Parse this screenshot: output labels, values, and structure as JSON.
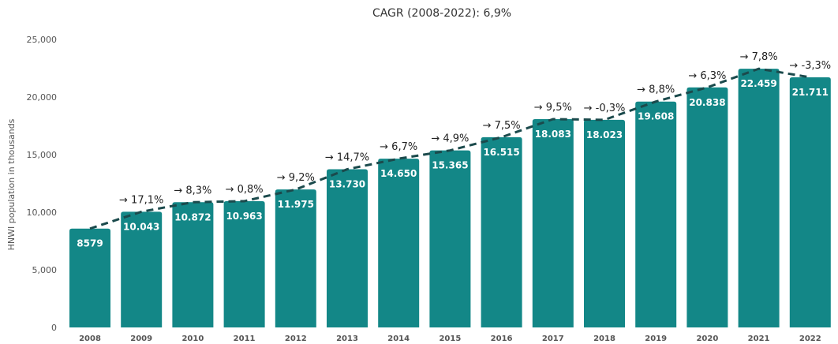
{
  "chart_data": {
    "type": "bar",
    "title": "CAGR (2008-2022): 6,9%",
    "xlabel": "",
    "ylabel": "HNWI population in thousands",
    "ylim": [
      0,
      25000
    ],
    "yticks": [
      "0",
      "5,000",
      "10,000",
      "15,000",
      "20,000",
      "25,000"
    ],
    "ytick_values": [
      0,
      5000,
      10000,
      15000,
      20000,
      25000
    ],
    "grid": false,
    "categories": [
      "2008",
      "2009",
      "2010",
      "2011",
      "2012",
      "2013",
      "2014",
      "2015",
      "2016",
      "2017",
      "2018",
      "2019",
      "2020",
      "2021",
      "2022"
    ],
    "values": [
      8579,
      10043,
      10872,
      10963,
      11975,
      13730,
      14650,
      15365,
      16515,
      18083,
      18023,
      19608,
      20838,
      22459,
      21711
    ],
    "value_labels": [
      "8579",
      "10.043",
      "10.872",
      "10.963",
      "11.975",
      "13.730",
      "14.650",
      "15.365",
      "16.515",
      "18.083",
      "18.023",
      "19.608",
      "20.838",
      "22.459",
      "21.711"
    ],
    "growth_labels": [
      "",
      "→ 17,1%",
      "→ 8,3%",
      "→ 0,8%",
      "→ 9,2%",
      "→ 14,7%",
      "→ 6,7%",
      "→ 4,9%",
      "→ 7,5%",
      "→ 9,5%",
      "→ -0,3%",
      "→ 8,8%",
      "→ 6,3%",
      "→ 7,8%",
      "→ -3,3%"
    ],
    "bar_color": "#138787",
    "trend_line_color": "#1b4a4c"
  }
}
